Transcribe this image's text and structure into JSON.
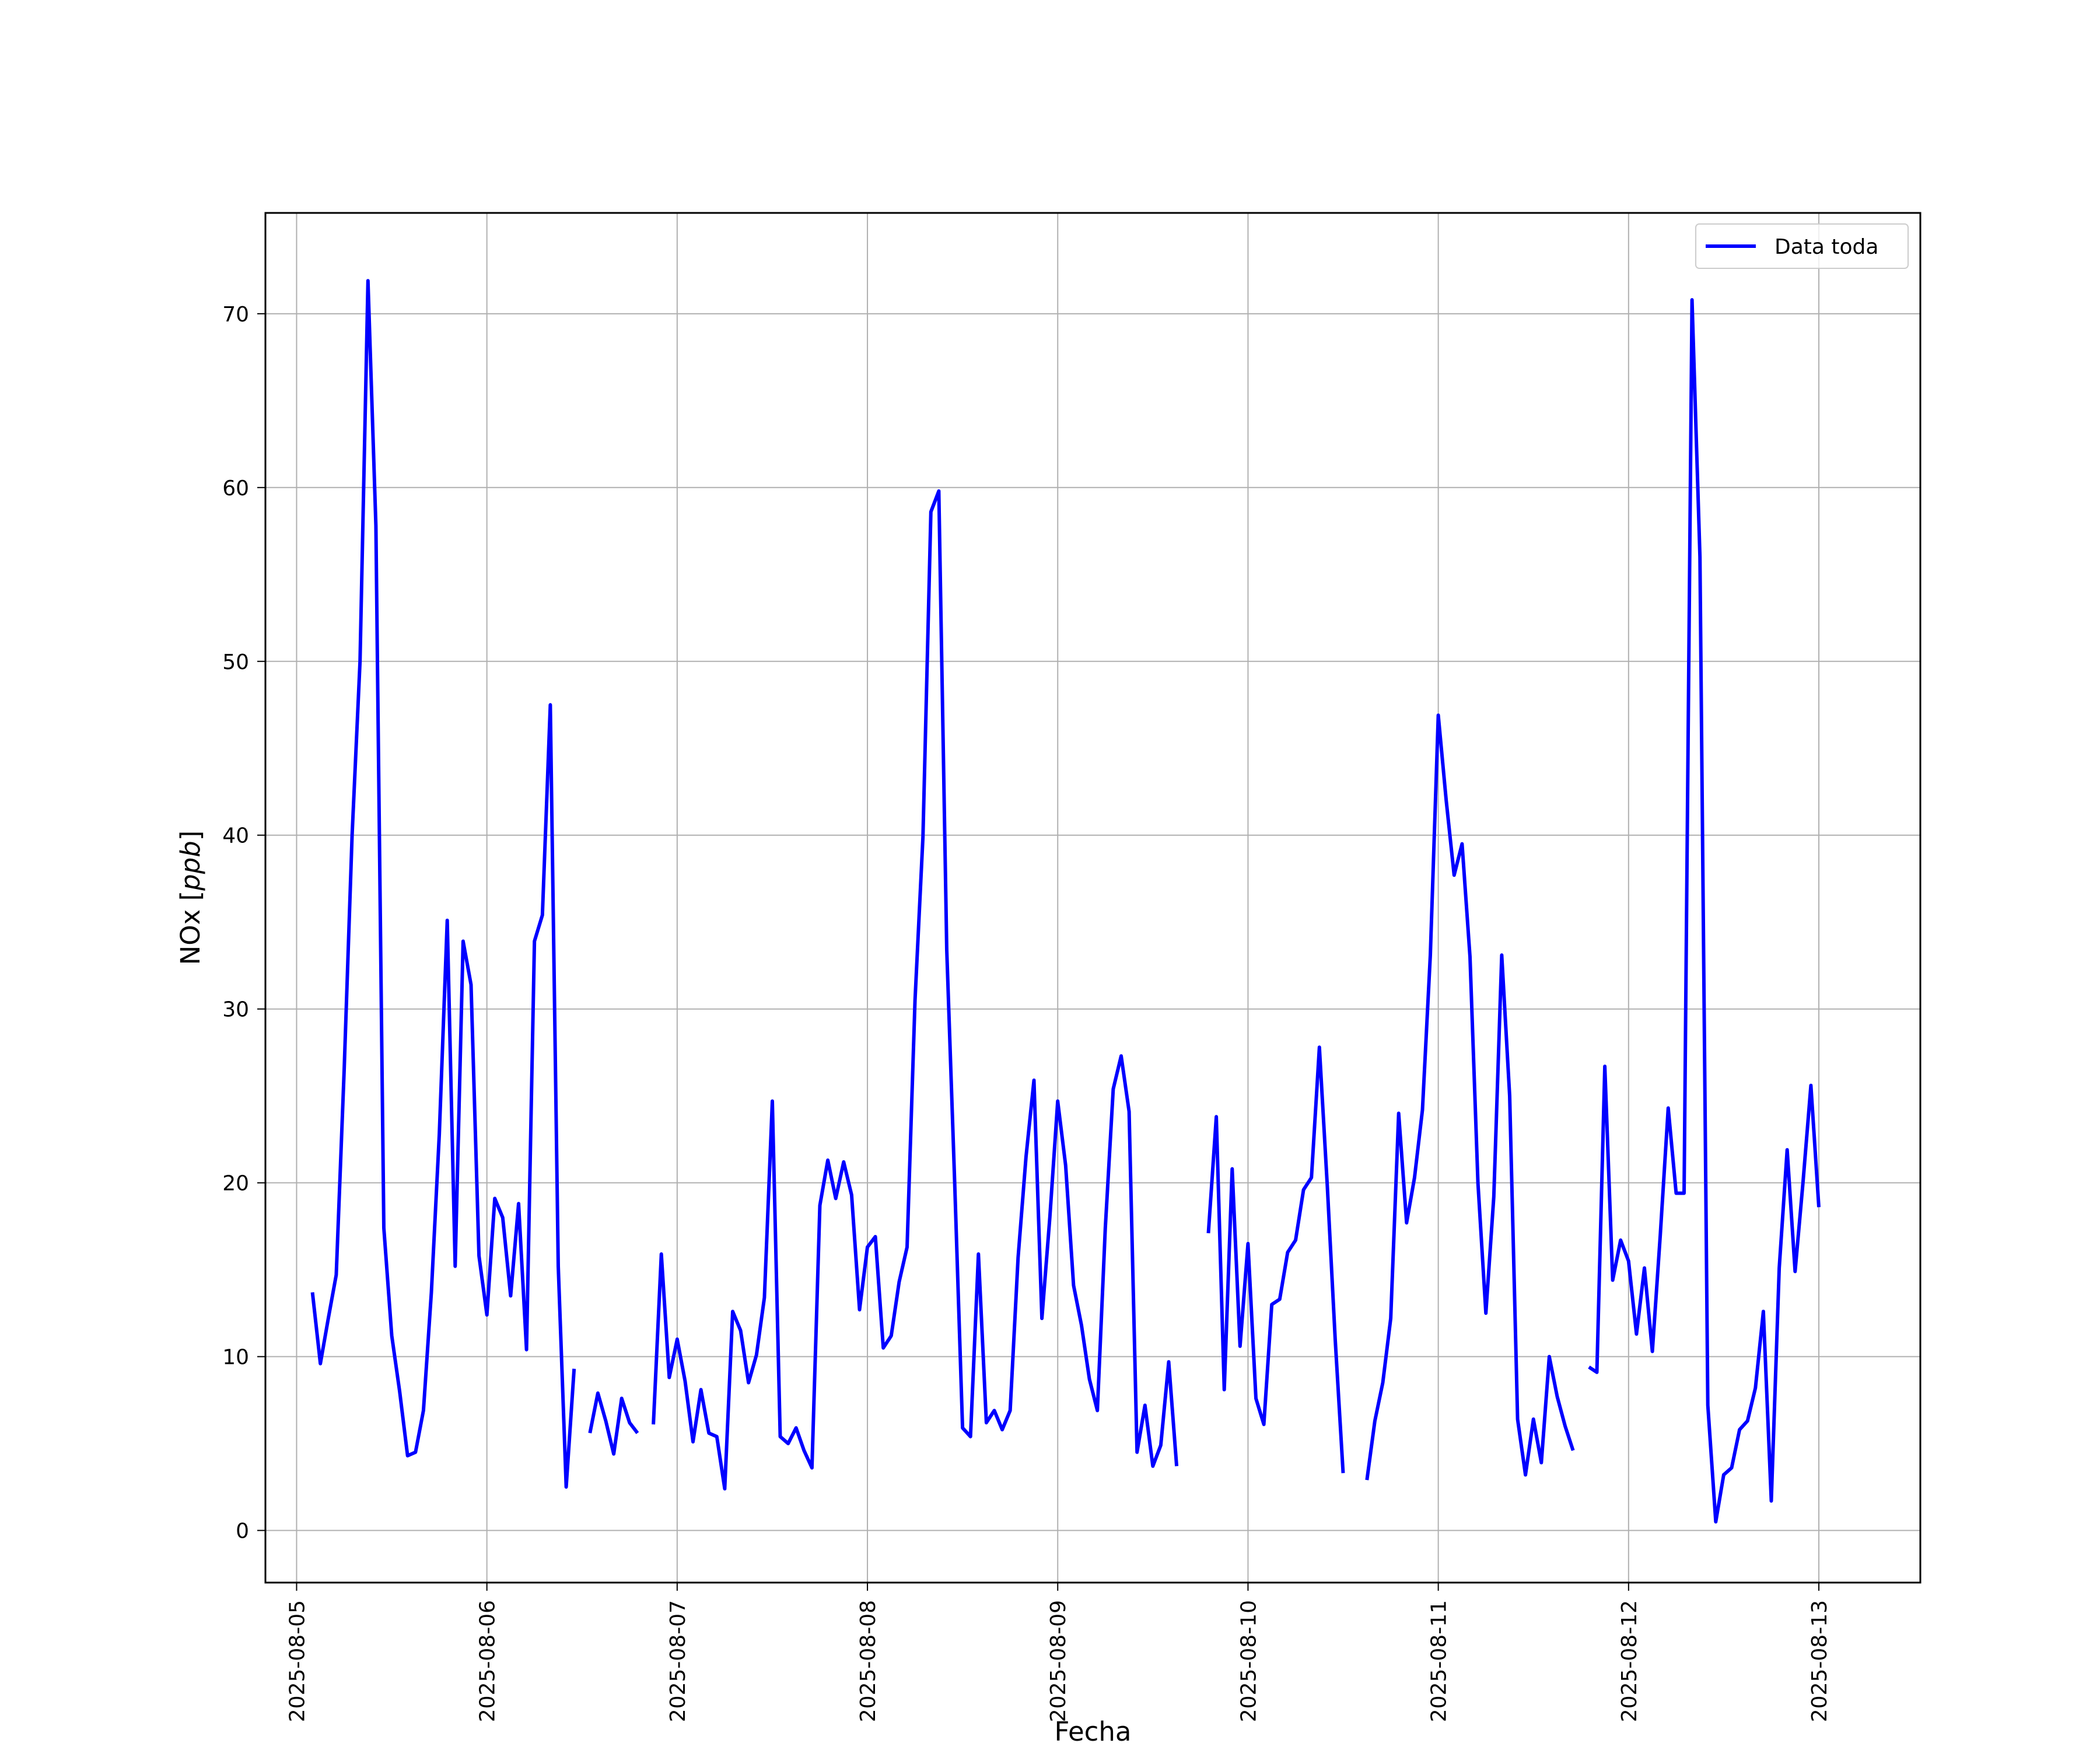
{
  "chart_data": {
    "type": "line",
    "xlabel": "Fecha",
    "ylabel_main": "NOx [",
    "ylabel_unit": "ppb",
    "ylabel_end": "]",
    "ylim": [
      -3,
      75.8
    ],
    "xlim": [
      "2025-08-04T20:04",
      "2025-08-13T12:48"
    ],
    "x_ticks": [
      "2025-08-05",
      "2025-08-06",
      "2025-08-07",
      "2025-08-08",
      "2025-08-09",
      "2025-08-10",
      "2025-08-11",
      "2025-08-12",
      "2025-08-13"
    ],
    "y_ticks": [
      0,
      10,
      20,
      30,
      40,
      50,
      60,
      70
    ],
    "grid": true,
    "legend_position": "top-right",
    "series": [
      {
        "name": "Data toda",
        "color": "#0000ff",
        "points": [
          [
            "2025-08-05T02:00",
            13.7
          ],
          [
            "2025-08-05T03:00",
            9.6
          ],
          [
            "2025-08-05T04:00",
            12.2
          ],
          [
            "2025-08-05T05:00",
            14.7
          ],
          [
            "2025-08-05T06:00",
            26.5
          ],
          [
            "2025-08-05T07:00",
            40.0
          ],
          [
            "2025-08-05T08:00",
            50.0
          ],
          [
            "2025-08-05T09:00",
            71.9
          ],
          [
            "2025-08-05T10:00",
            57.8
          ],
          [
            "2025-08-05T11:00",
            17.4
          ],
          [
            "2025-08-05T12:00",
            11.2
          ],
          [
            "2025-08-05T13:00",
            8.0
          ],
          [
            "2025-08-05T14:00",
            4.3
          ],
          [
            "2025-08-05T15:00",
            4.5
          ],
          [
            "2025-08-05T16:00",
            6.9
          ],
          [
            "2025-08-05T17:00",
            13.7
          ],
          [
            "2025-08-05T18:00",
            22.8
          ],
          [
            "2025-08-05T19:00",
            35.1
          ],
          [
            "2025-08-05T20:00",
            15.2
          ],
          [
            "2025-08-05T21:00",
            33.9
          ],
          [
            "2025-08-05T22:00",
            31.4
          ],
          [
            "2025-08-05T23:00",
            15.8
          ],
          [
            "2025-08-06T00:00",
            12.4
          ],
          [
            "2025-08-06T01:00",
            19.1
          ],
          [
            "2025-08-06T02:00",
            18.0
          ],
          [
            "2025-08-06T03:00",
            13.5
          ],
          [
            "2025-08-06T04:00",
            18.8
          ],
          [
            "2025-08-06T05:00",
            10.4
          ],
          [
            "2025-08-06T06:00",
            33.9
          ],
          [
            "2025-08-06T07:00",
            35.4
          ],
          [
            "2025-08-06T08:00",
            47.5
          ],
          [
            "2025-08-06T09:00",
            15.2
          ],
          [
            "2025-08-06T10:00",
            2.5
          ],
          [
            "2025-08-06T11:00",
            9.3
          ],
          [
            "2025-08-06T12:00",
            null
          ],
          [
            "2025-08-06T13:00",
            5.6
          ],
          [
            "2025-08-06T14:00",
            7.9
          ],
          [
            "2025-08-06T15:00",
            6.3
          ],
          [
            "2025-08-06T16:00",
            4.4
          ],
          [
            "2025-08-06T17:00",
            7.6
          ],
          [
            "2025-08-06T18:00",
            6.2
          ],
          [
            "2025-08-06T19:00",
            5.6
          ],
          [
            "2025-08-06T20:00",
            null
          ],
          [
            "2025-08-06T21:00",
            6.1
          ],
          [
            "2025-08-06T22:00",
            15.9
          ],
          [
            "2025-08-06T23:00",
            8.8
          ],
          [
            "2025-08-07T00:00",
            11.0
          ],
          [
            "2025-08-07T01:00",
            8.6
          ],
          [
            "2025-08-07T02:00",
            5.1
          ],
          [
            "2025-08-07T03:00",
            8.1
          ],
          [
            "2025-08-07T04:00",
            5.6
          ],
          [
            "2025-08-07T05:00",
            5.4
          ],
          [
            "2025-08-07T06:00",
            2.4
          ],
          [
            "2025-08-07T07:00",
            12.6
          ],
          [
            "2025-08-07T08:00",
            11.5
          ],
          [
            "2025-08-07T09:00",
            8.5
          ],
          [
            "2025-08-07T10:00",
            10.1
          ],
          [
            "2025-08-07T11:00",
            13.4
          ],
          [
            "2025-08-07T12:00",
            24.7
          ],
          [
            "2025-08-07T13:00",
            5.4
          ],
          [
            "2025-08-07T14:00",
            5.0
          ],
          [
            "2025-08-07T15:00",
            5.9
          ],
          [
            "2025-08-07T16:00",
            4.6
          ],
          [
            "2025-08-07T17:00",
            3.6
          ],
          [
            "2025-08-07T18:00",
            18.7
          ],
          [
            "2025-08-07T19:00",
            21.3
          ],
          [
            "2025-08-07T20:00",
            19.1
          ],
          [
            "2025-08-07T21:00",
            21.2
          ],
          [
            "2025-08-07T22:00",
            19.3
          ],
          [
            "2025-08-07T23:00",
            12.7
          ],
          [
            "2025-08-08T00:00",
            16.3
          ],
          [
            "2025-08-08T01:00",
            16.9
          ],
          [
            "2025-08-08T02:00",
            10.5
          ],
          [
            "2025-08-08T03:00",
            11.2
          ],
          [
            "2025-08-08T04:00",
            14.3
          ],
          [
            "2025-08-08T05:00",
            16.3
          ],
          [
            "2025-08-08T06:00",
            30.5
          ],
          [
            "2025-08-08T07:00",
            39.9
          ],
          [
            "2025-08-08T08:00",
            58.6
          ],
          [
            "2025-08-08T09:00",
            59.8
          ],
          [
            "2025-08-08T10:00",
            33.4
          ],
          [
            "2025-08-08T11:00",
            20.0
          ],
          [
            "2025-08-08T12:00",
            5.9
          ],
          [
            "2025-08-08T13:00",
            5.4
          ],
          [
            "2025-08-08T14:00",
            15.9
          ],
          [
            "2025-08-08T15:00",
            6.2
          ],
          [
            "2025-08-08T16:00",
            6.9
          ],
          [
            "2025-08-08T17:00",
            5.8
          ],
          [
            "2025-08-08T18:00",
            6.9
          ],
          [
            "2025-08-08T19:00",
            15.7
          ],
          [
            "2025-08-08T20:00",
            21.5
          ],
          [
            "2025-08-08T21:00",
            25.9
          ],
          [
            "2025-08-08T22:00",
            12.2
          ],
          [
            "2025-08-08T23:00",
            18.0
          ],
          [
            "2025-08-09T00:00",
            24.7
          ],
          [
            "2025-08-09T01:00",
            21.0
          ],
          [
            "2025-08-09T02:00",
            14.1
          ],
          [
            "2025-08-09T03:00",
            11.8
          ],
          [
            "2025-08-09T04:00",
            8.7
          ],
          [
            "2025-08-09T05:00",
            6.9
          ],
          [
            "2025-08-09T06:00",
            17.4
          ],
          [
            "2025-08-09T07:00",
            25.4
          ],
          [
            "2025-08-09T08:00",
            27.3
          ],
          [
            "2025-08-09T09:00",
            24.1
          ],
          [
            "2025-08-09T10:00",
            4.5
          ],
          [
            "2025-08-09T11:00",
            7.2
          ],
          [
            "2025-08-09T12:00",
            3.7
          ],
          [
            "2025-08-09T13:00",
            4.9
          ],
          [
            "2025-08-09T14:00",
            9.7
          ],
          [
            "2025-08-09T15:00",
            3.7
          ],
          [
            "2025-08-09T16:00",
            null
          ],
          [
            "2025-08-09T18:00",
            null
          ],
          [
            "2025-08-09T19:00",
            17.1
          ],
          [
            "2025-08-09T20:00",
            23.8
          ],
          [
            "2025-08-09T21:00",
            8.1
          ],
          [
            "2025-08-09T22:00",
            20.8
          ],
          [
            "2025-08-09T23:00",
            10.6
          ],
          [
            "2025-08-10T00:00",
            16.5
          ],
          [
            "2025-08-10T01:00",
            7.6
          ],
          [
            "2025-08-10T02:00",
            6.1
          ],
          [
            "2025-08-10T03:00",
            13.0
          ],
          [
            "2025-08-10T04:00",
            13.3
          ],
          [
            "2025-08-10T05:00",
            16.0
          ],
          [
            "2025-08-10T06:00",
            16.7
          ],
          [
            "2025-08-10T07:00",
            19.6
          ],
          [
            "2025-08-10T08:00",
            20.3
          ],
          [
            "2025-08-10T09:00",
            27.8
          ],
          [
            "2025-08-10T10:00",
            19.8
          ],
          [
            "2025-08-10T11:00",
            11.0
          ],
          [
            "2025-08-10T12:00",
            3.3
          ],
          [
            "2025-08-10T13:00",
            null
          ],
          [
            "2025-08-10T14:00",
            null
          ],
          [
            "2025-08-10T15:00",
            2.9
          ],
          [
            "2025-08-10T16:00",
            6.3
          ],
          [
            "2025-08-10T17:00",
            8.5
          ],
          [
            "2025-08-10T18:00",
            12.2
          ],
          [
            "2025-08-10T19:00",
            24.0
          ],
          [
            "2025-08-10T20:00",
            17.7
          ],
          [
            "2025-08-10T21:00",
            20.3
          ],
          [
            "2025-08-10T22:00",
            24.2
          ],
          [
            "2025-08-10T23:00",
            33.1
          ],
          [
            "2025-08-11T00:00",
            46.9
          ],
          [
            "2025-08-11T01:00",
            42.0
          ],
          [
            "2025-08-11T02:00",
            37.7
          ],
          [
            "2025-08-11T03:00",
            39.5
          ],
          [
            "2025-08-11T04:00",
            33.0
          ],
          [
            "2025-08-11T05:00",
            20.0
          ],
          [
            "2025-08-11T06:00",
            12.5
          ],
          [
            "2025-08-11T07:00",
            19.2
          ],
          [
            "2025-08-11T08:00",
            33.1
          ],
          [
            "2025-08-11T09:00",
            25.0
          ],
          [
            "2025-08-11T10:00",
            6.4
          ],
          [
            "2025-08-11T11:00",
            3.2
          ],
          [
            "2025-08-11T12:00",
            6.4
          ],
          [
            "2025-08-11T13:00",
            3.9
          ],
          [
            "2025-08-11T14:00",
            10.0
          ],
          [
            "2025-08-11T15:00",
            7.7
          ],
          [
            "2025-08-11T16:00",
            6.0
          ],
          [
            "2025-08-11T17:00",
            4.6
          ],
          [
            "2025-08-11T18:00",
            null
          ],
          [
            "2025-08-11T19:00",
            9.4
          ],
          [
            "2025-08-11T20:00",
            9.1
          ],
          [
            "2025-08-11T21:00",
            26.7
          ],
          [
            "2025-08-11T22:00",
            14.4
          ],
          [
            "2025-08-11T23:00",
            16.7
          ],
          [
            "2025-08-12T00:00",
            15.5
          ],
          [
            "2025-08-12T01:00",
            11.3
          ],
          [
            "2025-08-12T02:00",
            15.1
          ],
          [
            "2025-08-12T03:00",
            10.3
          ],
          [
            "2025-08-12T04:00",
            17.0
          ],
          [
            "2025-08-12T05:00",
            24.3
          ],
          [
            "2025-08-12T06:00",
            19.4
          ],
          [
            "2025-08-12T07:00",
            19.4
          ],
          [
            "2025-08-12T08:00",
            70.8
          ],
          [
            "2025-08-12T09:00",
            56.0
          ],
          [
            "2025-08-12T10:00",
            7.2
          ],
          [
            "2025-08-12T11:00",
            0.5
          ],
          [
            "2025-08-12T12:00",
            3.2
          ],
          [
            "2025-08-12T13:00",
            3.6
          ],
          [
            "2025-08-12T14:00",
            5.8
          ],
          [
            "2025-08-12T15:00",
            6.3
          ],
          [
            "2025-08-12T16:00",
            8.2
          ],
          [
            "2025-08-12T17:00",
            12.6
          ],
          [
            "2025-08-12T18:00",
            1.7
          ],
          [
            "2025-08-12T19:00",
            15.1
          ],
          [
            "2025-08-12T20:00",
            21.9
          ],
          [
            "2025-08-12T21:00",
            14.9
          ],
          [
            "2025-08-12T22:00",
            20.0
          ],
          [
            "2025-08-12T23:00",
            25.6
          ],
          [
            "2025-08-13T00:00",
            18.6
          ]
        ]
      }
    ]
  }
}
